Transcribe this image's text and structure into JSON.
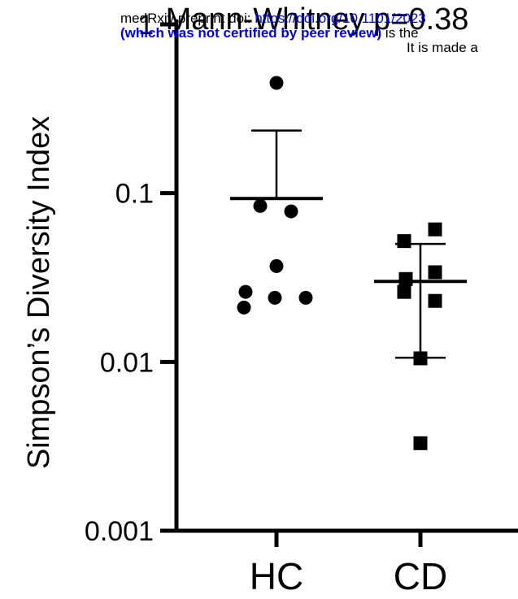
{
  "chart_data": {
    "type": "scatter",
    "title": "Mann-Whitney p=0.38",
    "xlabel": "",
    "ylabel": "Simpson’s Diversity Index",
    "y_scale": "log",
    "ylim": [
      0.001,
      1
    ],
    "y_ticks": [
      {
        "value": 1,
        "label": "1"
      },
      {
        "value": 0.1,
        "label": "0.1"
      },
      {
        "value": 0.01,
        "label": "0.01"
      },
      {
        "value": 0.001,
        "label": "0.001"
      }
    ],
    "categories": [
      "HC",
      "CD"
    ],
    "series": [
      {
        "category": "HC",
        "marker": "circle",
        "points": [
          0.45,
          0.084,
          0.078,
          0.037,
          0.026,
          0.024,
          0.024,
          0.021
        ],
        "center_line": 0.093,
        "error_upper": 0.235,
        "error_lower": 0.093
      },
      {
        "category": "CD",
        "marker": "square",
        "points": [
          0.061,
          0.052,
          0.034,
          0.031,
          0.026,
          0.023,
          0.0105,
          0.0033
        ],
        "center_line": 0.03,
        "error_upper": 0.05,
        "error_lower": 0.0106
      }
    ],
    "grid": false,
    "legend": "none",
    "color": "#000000"
  },
  "banner": {
    "line1_text": "medRxiv preprint doi: ",
    "line1_link": "https://doi.org/10.1101/2023",
    "line2_bold": "(which was not certified by peer review)",
    "line2_text": " is the",
    "line3_text": "It is made a"
  }
}
